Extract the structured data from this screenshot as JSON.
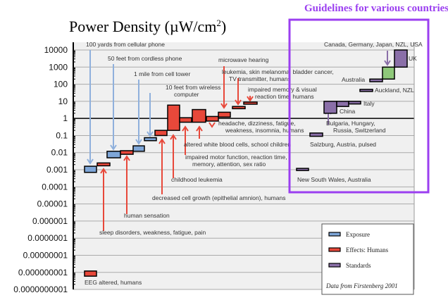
{
  "chart_data": {
    "type": "bar",
    "title": "Power Density (µW/cm²)",
    "title_parts": {
      "main": "Power Density (µW/cm",
      "sup": "2",
      "close": ")"
    },
    "highlight_label": "Guidelines for various countries",
    "y_scale": "log",
    "ylim": [
      1e-10,
      10000
    ],
    "y_ticks": [
      "10000",
      "1000",
      "100",
      "10",
      "1",
      "0.1",
      "0.01",
      "0.001",
      "0.0001",
      "0.00001",
      "0.000001",
      "0.0000001",
      "0.00000001",
      "0.000000001",
      "0.0000000001"
    ],
    "grid": true,
    "legend_position": "bottom-right",
    "legend": [
      {
        "name": "Exposure",
        "color": "#7ea6d8"
      },
      {
        "name": "Effects:  Humans",
        "color": "#e8483a"
      },
      {
        "name": "Standards",
        "color": "#8a6fa8"
      }
    ],
    "source_note": "Data from Firstenberg 2001",
    "colors": {
      "exposure": "#7ea6d8",
      "effects": "#e8483a",
      "standards": "#8a6fa8",
      "green": "#8fc97a",
      "highlight": "#9b3ff0"
    },
    "series": [
      {
        "name": "Exposure",
        "bars": [
          {
            "label": "100 yards from cellular phone",
            "low": 0.0007,
            "high": 0.0016
          },
          {
            "label": "50 feet from cordless phone",
            "low": 0.005,
            "high": 0.012
          },
          {
            "label": "1 mile from cell tower",
            "low": 0.012,
            "high": 0.025
          },
          {
            "label": "10 feet from wireless computer",
            "low": 0.05,
            "high": 0.075
          }
        ]
      },
      {
        "name": "Effects:  Humans",
        "bars": [
          {
            "label": "EEG altered, humans",
            "low": 6e-10,
            "high": 1.2e-09
          },
          {
            "label": "sleep disorders, weakness, fatigue, pain",
            "low": 0.0017,
            "high": 0.0025
          },
          {
            "label": "human sensation",
            "low": 0.008,
            "high": 0.013
          },
          {
            "label": "decreased cell growth (epithelial amnion), humans",
            "low": 0.1,
            "high": 0.2
          },
          {
            "label": "childhood leukemia",
            "low": 0.2,
            "high": 6
          },
          {
            "label": "impaired motor function, reaction time, memory, attention, sex ratio",
            "low": 0.6,
            "high": 1.1
          },
          {
            "label": "altered white blood cells, school children",
            "low": 0.6,
            "high": 3.3
          },
          {
            "label": "headache, dizziness, fatigue, weakness, insomnia, humans",
            "low": 0.7,
            "high": 1.3
          },
          {
            "label": "microwave hearing",
            "low": 1.2,
            "high": 2.3
          },
          {
            "label": "leukemia, skin melanoma, bladder cancer, TV transmitter, humans",
            "low": 3.7,
            "high": 5
          },
          {
            "label": "impaired memory & visual reaction time, humans",
            "low": 7,
            "high": 9
          }
        ]
      },
      {
        "name": "Standards",
        "bars": [
          {
            "label": "New South Wales, Australia",
            "low": 0.0009,
            "high": 0.0012
          },
          {
            "label": "Salzburg, Austria, pulsed",
            "low": 0.09,
            "high": 0.14
          },
          {
            "label": "China",
            "low": 2,
            "high": 10
          },
          {
            "label": "Bulgaria, Hungary, Russia, Switzerland",
            "low": 5,
            "high": 10
          },
          {
            "label": "Italy",
            "low": 7,
            "high": 10
          },
          {
            "label": "Auckland, NZL",
            "low": 40,
            "high": 50
          },
          {
            "label": "Australia",
            "low": 140,
            "high": 200
          },
          {
            "label": "Canada, Germany, Japan, NZL, USA",
            "low": 200,
            "high": 1000
          },
          {
            "label": "UK",
            "low": 1000,
            "high": 10000
          }
        ]
      }
    ]
  }
}
